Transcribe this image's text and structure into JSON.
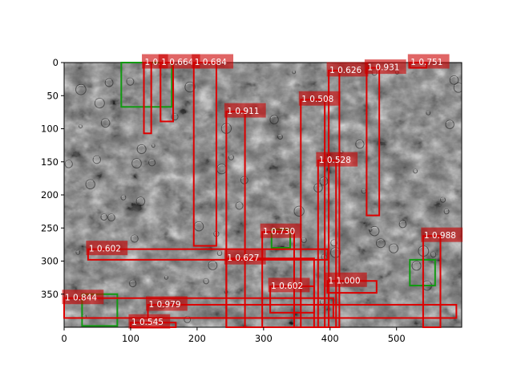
{
  "figure": {
    "x_ticks": [
      "0",
      "100",
      "200",
      "300",
      "400",
      "500"
    ],
    "y_ticks": [
      "0",
      "50",
      "100",
      "150",
      "200",
      "250",
      "300",
      "350"
    ],
    "image_extent": {
      "x": [
        0,
        598
      ],
      "y": [
        0,
        400
      ]
    },
    "colors": {
      "prediction": "#dd0000",
      "ground_truth": "#119911",
      "label_bg": "#cc0000",
      "label_text": "#ffffff"
    }
  },
  "ground_truth_boxes": [
    {
      "x0": 86,
      "y0": 0,
      "x1": 162,
      "y1": 67
    },
    {
      "x0": 27,
      "y0": 350,
      "x1": 80,
      "y1": 398
    },
    {
      "x0": 312,
      "y0": 252,
      "x1": 340,
      "y1": 280
    },
    {
      "x0": 520,
      "y0": 298,
      "x1": 558,
      "y1": 337
    }
  ],
  "detections": [
    {
      "label": "1 0.",
      "x0": 120,
      "y0": 0,
      "x1": 131,
      "y1": 107
    },
    {
      "label": "1 0.664",
      "x0": 145,
      "y0": 0,
      "x1": 164,
      "y1": 89
    },
    {
      "label": "1 0.684",
      "x0": 195,
      "y0": 0,
      "x1": 229,
      "y1": 277
    },
    {
      "label": "1 0.911",
      "x0": 244,
      "y0": 74,
      "x1": 272,
      "y1": 400
    },
    {
      "label": "1 0.931",
      "x0": 455,
      "y0": 8,
      "x1": 474,
      "y1": 231
    },
    {
      "label": "1 0.751",
      "x0": 520,
      "y0": 0,
      "x1": 545,
      "y1": 8
    },
    {
      "label": "1 0.626",
      "x0": 398,
      "y0": 12,
      "x1": 414,
      "y1": 400
    },
    {
      "label": "1 0.508",
      "x0": 356,
      "y0": 56,
      "x1": 392,
      "y1": 400
    },
    {
      "label": "1 0.528",
      "x0": 382,
      "y0": 148,
      "x1": 409,
      "y1": 400
    },
    {
      "label": "1 0.730",
      "x0": 298,
      "y0": 256,
      "x1": 346,
      "y1": 400
    },
    {
      "label": "1 0.988",
      "x0": 540,
      "y0": 262,
      "x1": 566,
      "y1": 400
    },
    {
      "label": "1 0.602",
      "x0": 36,
      "y0": 282,
      "x1": 397,
      "y1": 298
    },
    {
      "label": "1 0.627",
      "x0": 244,
      "y0": 296,
      "x1": 376,
      "y1": 400
    },
    {
      "label": "1 0.602",
      "x0": 310,
      "y0": 338,
      "x1": 376,
      "y1": 378
    },
    {
      "label": "1 1.000",
      "x0": 396,
      "y0": 330,
      "x1": 470,
      "y1": 348
    },
    {
      "label": "1 0.844",
      "x0": 0,
      "y0": 356,
      "x1": 405,
      "y1": 386
    },
    {
      "label": "1 0.979",
      "x0": 126,
      "y0": 366,
      "x1": 590,
      "y1": 386
    },
    {
      "label": "1 0.545",
      "x0": 100,
      "y0": 393,
      "x1": 168,
      "y1": 400
    }
  ]
}
